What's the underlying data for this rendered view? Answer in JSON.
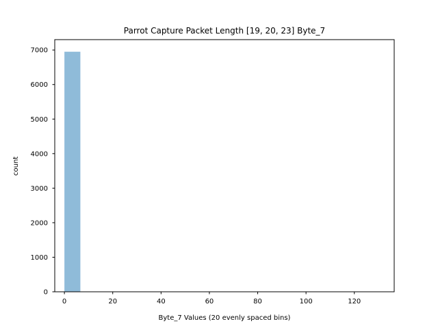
{
  "chart_data": {
    "type": "bar",
    "title": "Parrot Capture Packet Length [19, 20, 23] Byte_7",
    "xlabel": "Byte_7 Values (20 evenly spaced bins)",
    "ylabel": "count",
    "xlim": [
      -4,
      136.5
    ],
    "ylim": [
      0,
      7300
    ],
    "xticks": [
      0,
      20,
      40,
      60,
      80,
      100,
      120
    ],
    "yticks": [
      0,
      1000,
      2000,
      3000,
      4000,
      5000,
      6000,
      7000
    ],
    "bins": [
      {
        "x0": 0,
        "x1": 6.6,
        "count": 6950
      }
    ],
    "bar_color": "#8fbbd9",
    "grid": false,
    "legend": "none"
  }
}
